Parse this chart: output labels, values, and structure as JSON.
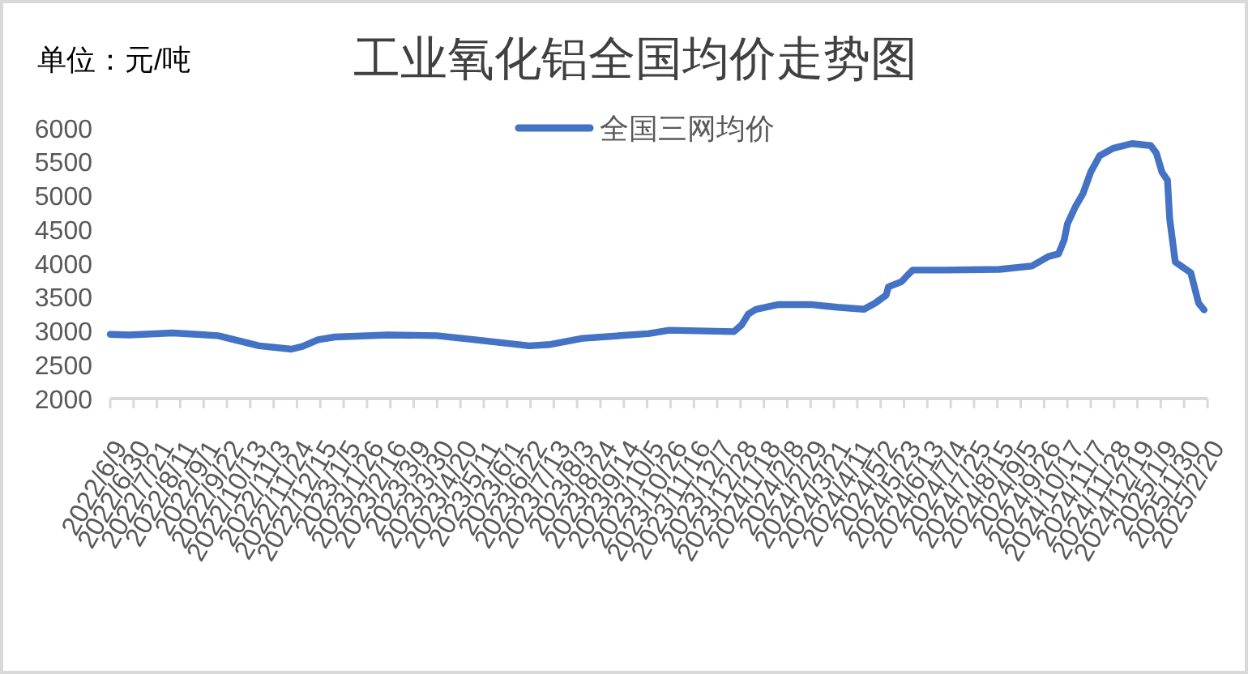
{
  "chart_data": {
    "type": "line",
    "title": "工业氧化铝全国均价走势图",
    "annotations": [
      "单位：元/吨"
    ],
    "x": [
      "2022-06-09",
      "2022-06-26",
      "2022-08-04",
      "2022-09-14",
      "2022-10-01",
      "2022-10-21",
      "2022-11-19",
      "2022-11-29",
      "2022-12-13",
      "2022-12-28",
      "2023-02-14",
      "2023-03-30",
      "2023-05-03",
      "2023-06-21",
      "2023-07-10",
      "2023-08-08",
      "2023-10-06",
      "2023-10-25",
      "2023-12-22",
      "2023-12-29",
      "2024-01-04",
      "2024-01-11",
      "2024-01-31",
      "2024-02-29",
      "2024-03-24",
      "2024-04-17",
      "2024-04-27",
      "2024-05-07",
      "2024-05-09",
      "2024-05-21",
      "2024-05-26",
      "2024-05-31",
      "2024-06-29",
      "2024-08-17",
      "2024-09-15",
      "2024-09-30",
      "2024-10-09",
      "2024-10-14",
      "2024-10-17",
      "2024-10-24",
      "2024-10-31",
      "2024-11-07",
      "2024-11-15",
      "2024-11-27",
      "2024-12-14",
      "2024-12-31",
      "2025-01-05",
      "2025-01-10",
      "2025-01-15",
      "2025-01-17",
      "2025-01-22",
      "2025-02-05",
      "2025-02-12",
      "2025-02-17"
    ],
    "series": [
      {
        "name": "全国三网均价",
        "color": "#4472c4",
        "values": [
          2950,
          2940,
          2970,
          2930,
          2860,
          2780,
          2730,
          2770,
          2870,
          2910,
          2940,
          2930,
          2870,
          2780,
          2800,
          2890,
          2960,
          3010,
          2990,
          3090,
          3250,
          3320,
          3390,
          3390,
          3350,
          3320,
          3410,
          3530,
          3650,
          3730,
          3820,
          3900,
          3900,
          3910,
          3960,
          4100,
          4140,
          4340,
          4580,
          4830,
          5030,
          5350,
          5590,
          5700,
          5770,
          5740,
          5630,
          5350,
          5230,
          4660,
          4020,
          3860,
          3410,
          3310
        ]
      }
    ],
    "xlim": [
      "2022-06-09",
      "2025-02-20"
    ],
    "xticks": [
      {
        "value": "2022-06-09",
        "label": "2022/6/9"
      },
      {
        "value": "2022-06-30",
        "label": "2022/6/30"
      },
      {
        "value": "2022-07-21",
        "label": "2022/7/21"
      },
      {
        "value": "2022-08-11",
        "label": "2022/8/11"
      },
      {
        "value": "2022-09-01",
        "label": "2022/9/1"
      },
      {
        "value": "2022-09-22",
        "label": "2022/9/22"
      },
      {
        "value": "2022-10-13",
        "label": "2022/10/13"
      },
      {
        "value": "2022-11-03",
        "label": "2022/11/3"
      },
      {
        "value": "2022-11-24",
        "label": "2022/11/24"
      },
      {
        "value": "2022-12-15",
        "label": "2022/12/15"
      },
      {
        "value": "2023-01-05",
        "label": "2023/1/5"
      },
      {
        "value": "2023-01-26",
        "label": "2023/1/26"
      },
      {
        "value": "2023-02-16",
        "label": "2023/2/16"
      },
      {
        "value": "2023-03-09",
        "label": "2023/3/9"
      },
      {
        "value": "2023-03-30",
        "label": "2023/3/30"
      },
      {
        "value": "2023-04-20",
        "label": "2023/4/20"
      },
      {
        "value": "2023-05-11",
        "label": "2023/5/11"
      },
      {
        "value": "2023-06-01",
        "label": "2023/6/1"
      },
      {
        "value": "2023-06-22",
        "label": "2023/6/22"
      },
      {
        "value": "2023-07-13",
        "label": "2023/7/13"
      },
      {
        "value": "2023-08-03",
        "label": "2023/8/3"
      },
      {
        "value": "2023-08-24",
        "label": "2023/8/24"
      },
      {
        "value": "2023-09-14",
        "label": "2023/9/14"
      },
      {
        "value": "2023-10-05",
        "label": "2023/10/5"
      },
      {
        "value": "2023-10-26",
        "label": "2023/10/26"
      },
      {
        "value": "2023-11-16",
        "label": "2023/11/16"
      },
      {
        "value": "2023-12-07",
        "label": "2023/12/7"
      },
      {
        "value": "2023-12-28",
        "label": "2023/12/28"
      },
      {
        "value": "2024-01-18",
        "label": "2024/1/18"
      },
      {
        "value": "2024-02-08",
        "label": "2024/2/8"
      },
      {
        "value": "2024-02-29",
        "label": "2024/2/29"
      },
      {
        "value": "2024-03-21",
        "label": "2024/3/21"
      },
      {
        "value": "2024-04-11",
        "label": "2024/4/11"
      },
      {
        "value": "2024-05-02",
        "label": "2024/5/2"
      },
      {
        "value": "2024-05-23",
        "label": "2024/5/23"
      },
      {
        "value": "2024-06-13",
        "label": "2024/6/13"
      },
      {
        "value": "2024-07-04",
        "label": "2024/7/4"
      },
      {
        "value": "2024-07-25",
        "label": "2024/7/25"
      },
      {
        "value": "2024-08-15",
        "label": "2024/8/15"
      },
      {
        "value": "2024-09-05",
        "label": "2024/9/5"
      },
      {
        "value": "2024-09-26",
        "label": "2024/9/26"
      },
      {
        "value": "2024-10-17",
        "label": "2024/10/17"
      },
      {
        "value": "2024-11-07",
        "label": "2024/11/7"
      },
      {
        "value": "2024-11-28",
        "label": "2024/11/28"
      },
      {
        "value": "2024-12-19",
        "label": "2024/12/19"
      },
      {
        "value": "2025-01-09",
        "label": "2025/1/9"
      },
      {
        "value": "2025-01-30",
        "label": "2025/1/30"
      },
      {
        "value": "2025-02-20",
        "label": "2025/2/20"
      }
    ],
    "ylim": [
      2000,
      6000
    ],
    "yticks": [
      2000,
      2500,
      3000,
      3500,
      4000,
      4500,
      5000,
      5500,
      6000
    ],
    "legend": "top",
    "marker": "none",
    "line_style": "solid"
  }
}
